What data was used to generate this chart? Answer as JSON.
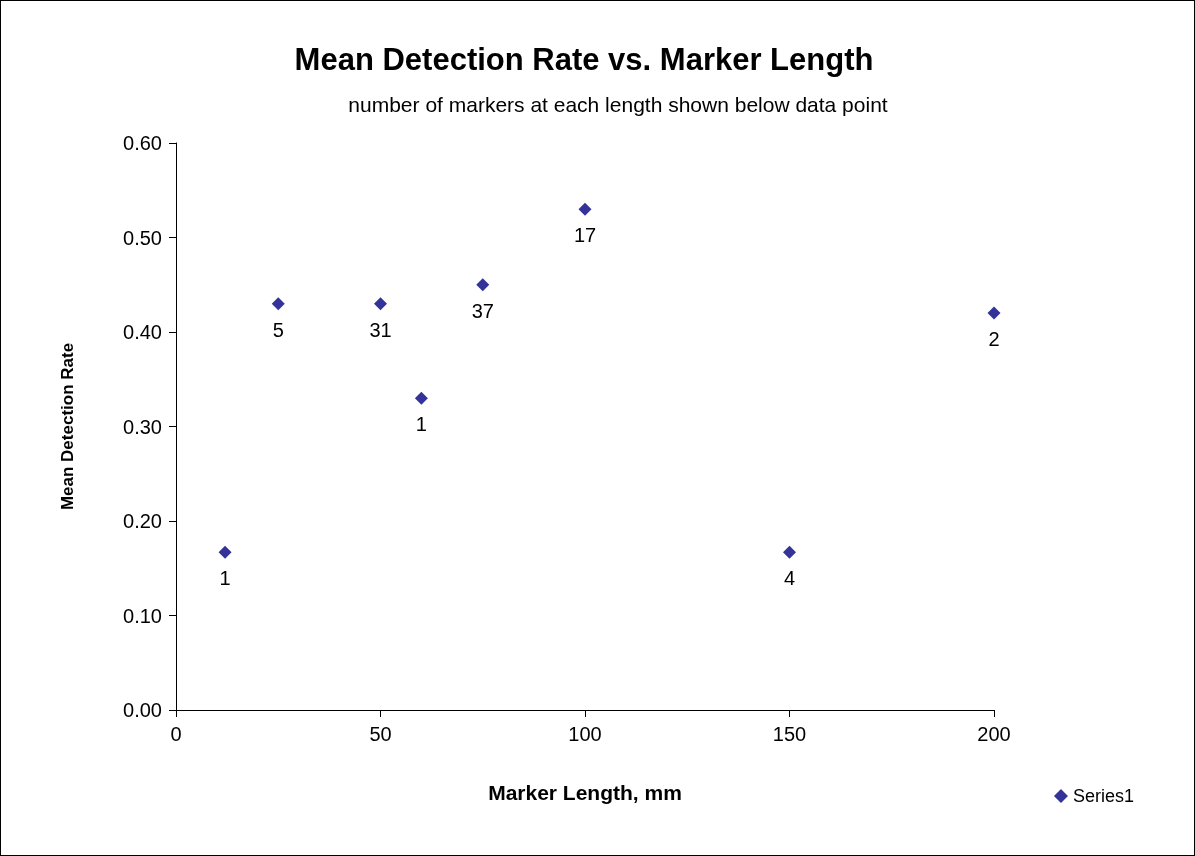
{
  "chart_data": {
    "type": "scatter",
    "title": "Mean Detection Rate vs. Marker Length",
    "subtitle": "number of markers at each length shown below data point",
    "xlabel": "Marker Length, mm",
    "ylabel": "Mean Detection Rate",
    "x": [
      12,
      25,
      50,
      60,
      75,
      100,
      150,
      200
    ],
    "series": [
      {
        "name": "Series1",
        "color": "#000080",
        "values": [
          0.167,
          0.43,
          0.43,
          0.33,
          0.45,
          0.53,
          0.167,
          0.42
        ]
      }
    ],
    "annotations": [
      {
        "text": "1",
        "x": 12,
        "y": 0.167
      },
      {
        "text": "5",
        "x": 25,
        "y": 0.43
      },
      {
        "text": "31",
        "x": 50,
        "y": 0.43
      },
      {
        "text": "1",
        "x": 60,
        "y": 0.33
      },
      {
        "text": "37",
        "x": 75,
        "y": 0.45
      },
      {
        "text": "17",
        "x": 100,
        "y": 0.53
      },
      {
        "text": "4",
        "x": 150,
        "y": 0.167
      },
      {
        "text": "2",
        "x": 200,
        "y": 0.42
      }
    ],
    "xlim": [
      0,
      200
    ],
    "xticks": [
      0,
      50,
      100,
      150,
      200
    ],
    "ylim": [
      0,
      0.6
    ],
    "yticks": [
      {
        "value": 0,
        "label": "0.00"
      },
      {
        "value": 0.1,
        "label": "0.10"
      },
      {
        "value": 0.2,
        "label": "0.20"
      },
      {
        "value": 0.3,
        "label": "0.30"
      },
      {
        "value": 0.4,
        "label": "0.40"
      },
      {
        "value": 0.5,
        "label": "0.50"
      },
      {
        "value": 0.6,
        "label": "0.60"
      }
    ],
    "marker": "diamond",
    "legend": "bottom right",
    "grid": false
  }
}
